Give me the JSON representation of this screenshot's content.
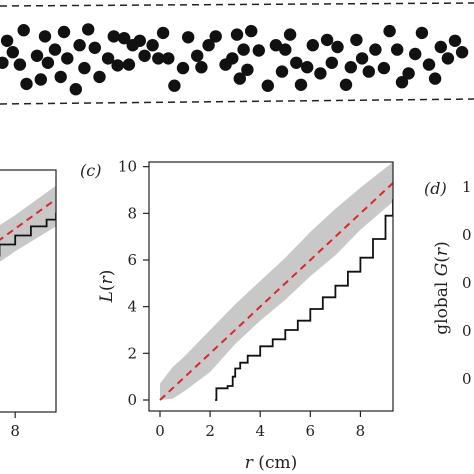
{
  "colors": {
    "envelope": "#c8c8c8",
    "theoretical": "#d8282c",
    "observed": "#111111",
    "axis": "#222222",
    "points": "#111111"
  },
  "chart_data": [
    {
      "type": "scatter",
      "panel": "",
      "description_shown": "point pattern strip bounded by dashed lines",
      "note": "point locations only, no axes printed",
      "series": [
        {
          "name": "",
          "points": [
            [
              0.005,
              0.6
            ],
            [
              0.015,
              0.35
            ],
            [
              0.027,
              0.48
            ],
            [
              0.042,
              0.62
            ],
            [
              0.05,
              0.23
            ],
            [
              0.056,
              0.84
            ],
            [
              0.078,
              0.52
            ],
            [
              0.086,
              0.79
            ],
            [
              0.095,
              0.3
            ],
            [
              0.101,
              0.6
            ],
            [
              0.116,
              0.45
            ],
            [
              0.128,
              0.76
            ],
            [
              0.135,
              0.25
            ],
            [
              0.142,
              0.55
            ],
            [
              0.16,
              0.9
            ],
            [
              0.168,
              0.4
            ],
            [
              0.178,
              0.66
            ],
            [
              0.186,
              0.22
            ],
            [
              0.2,
              0.43
            ],
            [
              0.21,
              0.76
            ],
            [
              0.228,
              0.55
            ],
            [
              0.24,
              0.3
            ],
            [
              0.248,
              0.63
            ],
            [
              0.262,
              0.32
            ],
            [
              0.272,
              0.62
            ],
            [
              0.28,
              0.4
            ],
            [
              0.295,
              0.35
            ],
            [
              0.305,
              0.52
            ],
            [
              0.322,
              0.4
            ],
            [
              0.334,
              0.55
            ],
            [
              0.344,
              0.26
            ],
            [
              0.355,
              0.55
            ],
            [
              0.368,
              0.86
            ],
            [
              0.386,
              0.66
            ],
            [
              0.397,
              0.31
            ],
            [
              0.416,
              0.52
            ],
            [
              0.425,
              0.65
            ],
            [
              0.44,
              0.4
            ],
            [
              0.455,
              0.3
            ],
            [
              0.476,
              0.62
            ],
            [
              0.49,
              0.55
            ],
            [
              0.5,
              0.28
            ],
            [
              0.506,
              0.78
            ],
            [
              0.514,
              0.45
            ],
            [
              0.522,
              0.68
            ],
            [
              0.53,
              0.24
            ],
            [
              0.546,
              0.46
            ],
            [
              0.565,
              0.86
            ],
            [
              0.582,
              0.4
            ],
            [
              0.595,
              0.7
            ],
            [
              0.602,
              0.45
            ],
            [
              0.612,
              0.28
            ],
            [
              0.625,
              0.6
            ],
            [
              0.635,
              0.85
            ],
            [
              0.648,
              0.65
            ],
            [
              0.66,
              0.4
            ],
            [
              0.676,
              0.72
            ],
            [
              0.69,
              0.34
            ],
            [
              0.7,
              0.6
            ],
            [
              0.712,
              0.42
            ],
            [
              0.73,
              0.85
            ],
            [
              0.74,
              0.65
            ],
            [
              0.752,
              0.34
            ],
            [
              0.764,
              0.55
            ],
            [
              0.778,
              0.7
            ],
            [
              0.792,
              0.45
            ],
            [
              0.81,
              0.66
            ],
            [
              0.822,
              0.24
            ],
            [
              0.838,
              0.45
            ],
            [
              0.848,
              0.82
            ],
            [
              0.862,
              0.72
            ],
            [
              0.876,
              0.5
            ],
            [
              0.89,
              0.26
            ],
            [
              0.905,
              0.62
            ],
            [
              0.918,
              0.78
            ],
            [
              0.93,
              0.42
            ],
            [
              0.945,
              0.55
            ],
            [
              0.96,
              0.35
            ],
            [
              0.975,
              0.48
            ]
          ]
        }
      ]
    },
    {
      "type": "line",
      "panel": "",
      "xlim": [
        0,
        9.3
      ],
      "ylim": [
        0,
        10.5
      ],
      "x_ticks": [
        "8"
      ],
      "x_tick_values": [
        8
      ],
      "series": [
        {
          "name": "",
          "role": "envelope",
          "x": [
            0,
            2,
            4,
            6,
            8,
            9.3
          ],
          "lower": [
            0,
            1.3,
            3.1,
            5.1,
            7.0,
            8.1
          ],
          "upper": [
            0.5,
            2.8,
            4.8,
            6.8,
            8.6,
            9.9
          ]
        },
        {
          "name": "",
          "role": "theoretical",
          "x": [
            0,
            9.3
          ],
          "y": [
            0,
            9.3
          ]
        },
        {
          "name": "",
          "role": "observed",
          "x": [
            5.5,
            6.0,
            6.5,
            7.0,
            7.5,
            8.0,
            8.5,
            9.0,
            9.3
          ],
          "y": [
            5.2,
            5.7,
            6.3,
            6.8,
            7.3,
            7.7,
            8.1,
            8.4,
            8.7
          ]
        }
      ]
    },
    {
      "type": "line",
      "panel": "(c)",
      "xlabel": "r (cm)",
      "ylabel": "L(r)",
      "xlim": [
        0,
        9.3
      ],
      "ylim": [
        0,
        10.2
      ],
      "x_ticks": [
        "0",
        "2",
        "4",
        "6",
        "8"
      ],
      "x_tick_values": [
        0,
        2,
        4,
        6,
        8
      ],
      "y_ticks": [
        "0",
        "2",
        "4",
        "6",
        "8",
        "10"
      ],
      "y_tick_values": [
        0,
        2,
        4,
        6,
        8,
        10
      ],
      "series": [
        {
          "name": "",
          "role": "envelope",
          "x": [
            0,
            0.5,
            1.0,
            2.0,
            3.0,
            4.0,
            5.0,
            6.0,
            7.0,
            8.0,
            9.3
          ],
          "lower": [
            0,
            0.05,
            0.4,
            1.2,
            2.4,
            3.4,
            4.3,
            5.3,
            6.2,
            7.3,
            8.5
          ],
          "upper": [
            0.7,
            1.4,
            1.9,
            3.0,
            4.1,
            5.1,
            6.1,
            7.2,
            8.2,
            9.1,
            10.2
          ]
        },
        {
          "name": "",
          "role": "theoretical",
          "x": [
            0,
            9.3
          ],
          "y": [
            0,
            9.3
          ]
        },
        {
          "name": "",
          "role": "observed",
          "x": [
            2.2,
            2.25,
            2.7,
            2.9,
            3.0,
            3.2,
            3.5,
            4.0,
            4.5,
            5.0,
            5.5,
            6.0,
            6.5,
            7.0,
            7.5,
            8.0,
            8.5,
            9.0,
            9.3
          ],
          "y": [
            0,
            0.5,
            0.6,
            1.0,
            1.35,
            1.6,
            1.9,
            2.3,
            2.6,
            3.0,
            3.4,
            3.9,
            4.4,
            4.9,
            5.5,
            6.1,
            6.9,
            7.9,
            8.6
          ]
        }
      ]
    },
    {
      "type": "line",
      "panel": "(d)",
      "ylabel": "global G(r)",
      "y_ticks_partial": [
        "1",
        "0",
        "0",
        "0",
        "0"
      ],
      "series": []
    }
  ]
}
